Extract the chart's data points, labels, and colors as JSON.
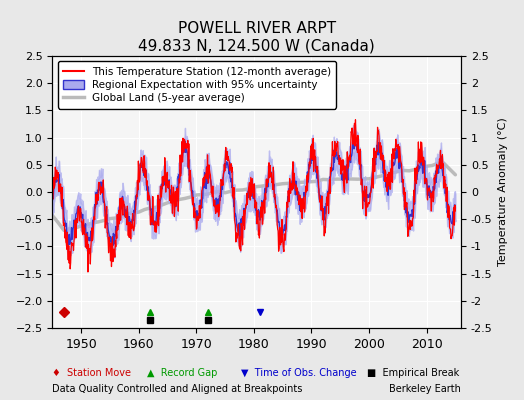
{
  "title": "POWELL RIVER ARPT",
  "subtitle": "49.833 N, 124.500 W (Canada)",
  "ylabel": "Temperature Anomaly (°C)",
  "xlabel_left": "Data Quality Controlled and Aligned at Breakpoints",
  "xlabel_right": "Berkeley Earth",
  "ylim": [
    -2.5,
    2.5
  ],
  "xlim": [
    1945,
    2016
  ],
  "yticks": [
    -2.5,
    -2,
    -1.5,
    -1,
    -0.5,
    0,
    0.5,
    1,
    1.5,
    2,
    2.5
  ],
  "xticks": [
    1950,
    1960,
    1970,
    1980,
    1990,
    2000,
    2010
  ],
  "bg_color": "#e8e8e8",
  "plot_bg_color": "#f5f5f5",
  "grid_color": "#ffffff",
  "station_color": "#ff0000",
  "regional_color": "#3333cc",
  "regional_fill": "#aaaaee",
  "global_color": "#bbbbbb",
  "legend_items": [
    {
      "label": "This Temperature Station (12-month average)",
      "color": "#ff0000",
      "lw": 1.5
    },
    {
      "label": "Regional Expectation with 95% uncertainty",
      "color": "#3333cc",
      "fill": "#aaaaee"
    },
    {
      "label": "Global Land (5-year average)",
      "color": "#bbbbbb",
      "lw": 2
    }
  ],
  "markers": [
    {
      "type": "station_move",
      "year": 1947,
      "label": "Station Move",
      "color": "#cc0000",
      "marker": "D"
    },
    {
      "type": "record_gap",
      "year": 1962,
      "label": "Record Gap",
      "color": "#009900",
      "marker": "^"
    },
    {
      "type": "record_gap",
      "year": 1972,
      "label": "Record Gap",
      "color": "#009900",
      "marker": "^"
    },
    {
      "type": "time_obs",
      "year": 1981,
      "label": "Time of Obs. Change",
      "color": "#0000cc",
      "marker": "v"
    },
    {
      "type": "empirical",
      "year": 1962,
      "label": "Empirical Break",
      "color": "#000000",
      "marker": "s"
    },
    {
      "type": "empirical",
      "year": 1972,
      "label": "Empirical Break",
      "color": "#000000",
      "marker": "s"
    }
  ],
  "np_seed": 42
}
